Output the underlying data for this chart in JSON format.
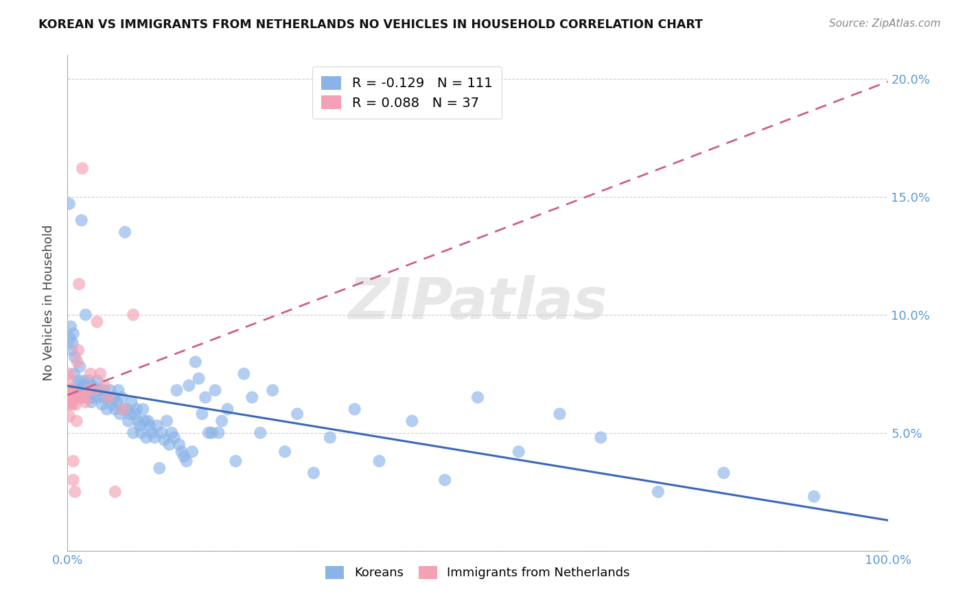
{
  "title": "KOREAN VS IMMIGRANTS FROM NETHERLANDS NO VEHICLES IN HOUSEHOLD CORRELATION CHART",
  "source": "Source: ZipAtlas.com",
  "ylabel": "No Vehicles in Household",
  "xmin": 0.0,
  "xmax": 1.0,
  "ymin": 0.0,
  "ymax": 0.21,
  "korean_color": "#8ab4e8",
  "netherlands_color": "#f4a0b5",
  "korean_line_color": "#3a68b8",
  "netherlands_line_color": "#d06080",
  "korean_R": -0.129,
  "korean_N": 111,
  "netherlands_R": 0.088,
  "netherlands_N": 37,
  "legend_label_korean": "Koreans",
  "legend_label_netherlands": "Immigrants from Netherlands",
  "watermark": "ZIPatlas",
  "korean_x": [
    0.002,
    0.003,
    0.004,
    0.005,
    0.006,
    0.007,
    0.008,
    0.009,
    0.01,
    0.011,
    0.012,
    0.013,
    0.014,
    0.015,
    0.016,
    0.017,
    0.018,
    0.019,
    0.02,
    0.021,
    0.022,
    0.023,
    0.024,
    0.025,
    0.026,
    0.027,
    0.028,
    0.029,
    0.03,
    0.032,
    0.034,
    0.036,
    0.038,
    0.04,
    0.042,
    0.044,
    0.046,
    0.048,
    0.05,
    0.052,
    0.054,
    0.056,
    0.058,
    0.06,
    0.062,
    0.064,
    0.066,
    0.068,
    0.07,
    0.072,
    0.074,
    0.076,
    0.078,
    0.08,
    0.082,
    0.084,
    0.086,
    0.088,
    0.09,
    0.092,
    0.094,
    0.096,
    0.098,
    0.1,
    0.103,
    0.106,
    0.109,
    0.112,
    0.115,
    0.118,
    0.121,
    0.124,
    0.127,
    0.13,
    0.133,
    0.136,
    0.139,
    0.142,
    0.145,
    0.148,
    0.152,
    0.156,
    0.16,
    0.164,
    0.168,
    0.172,
    0.176,
    0.18,
    0.184,
    0.188,
    0.195,
    0.205,
    0.215,
    0.225,
    0.235,
    0.25,
    0.265,
    0.28,
    0.3,
    0.32,
    0.35,
    0.38,
    0.42,
    0.46,
    0.5,
    0.55,
    0.6,
    0.65,
    0.72,
    0.8,
    0.91
  ],
  "korean_y": [
    0.147,
    0.09,
    0.095,
    0.085,
    0.088,
    0.092,
    0.075,
    0.082,
    0.068,
    0.07,
    0.068,
    0.065,
    0.072,
    0.078,
    0.068,
    0.14,
    0.065,
    0.07,
    0.072,
    0.068,
    0.1,
    0.065,
    0.068,
    0.068,
    0.072,
    0.068,
    0.065,
    0.063,
    0.07,
    0.065,
    0.068,
    0.072,
    0.068,
    0.065,
    0.062,
    0.068,
    0.065,
    0.06,
    0.065,
    0.068,
    0.062,
    0.065,
    0.06,
    0.063,
    0.068,
    0.058,
    0.065,
    0.06,
    0.135,
    0.06,
    0.055,
    0.058,
    0.063,
    0.05,
    0.058,
    0.06,
    0.055,
    0.053,
    0.05,
    0.06,
    0.055,
    0.048,
    0.055,
    0.053,
    0.05,
    0.048,
    0.053,
    0.035,
    0.05,
    0.047,
    0.055,
    0.045,
    0.05,
    0.048,
    0.068,
    0.045,
    0.042,
    0.04,
    0.038,
    0.07,
    0.042,
    0.08,
    0.073,
    0.058,
    0.065,
    0.05,
    0.05,
    0.068,
    0.05,
    0.055,
    0.06,
    0.038,
    0.075,
    0.065,
    0.05,
    0.068,
    0.042,
    0.058,
    0.033,
    0.048,
    0.06,
    0.038,
    0.055,
    0.03,
    0.065,
    0.042,
    0.058,
    0.048,
    0.025,
    0.033,
    0.023
  ],
  "netherlands_x": [
    0.001,
    0.001,
    0.002,
    0.002,
    0.002,
    0.003,
    0.003,
    0.004,
    0.004,
    0.005,
    0.005,
    0.006,
    0.007,
    0.007,
    0.008,
    0.008,
    0.009,
    0.01,
    0.011,
    0.012,
    0.013,
    0.014,
    0.015,
    0.016,
    0.018,
    0.02,
    0.022,
    0.025,
    0.028,
    0.032,
    0.036,
    0.04,
    0.045,
    0.05,
    0.058,
    0.068,
    0.08
  ],
  "netherlands_y": [
    0.073,
    0.065,
    0.075,
    0.063,
    0.057,
    0.068,
    0.062,
    0.068,
    0.065,
    0.068,
    0.063,
    0.062,
    0.038,
    0.03,
    0.068,
    0.065,
    0.025,
    0.062,
    0.055,
    0.08,
    0.085,
    0.113,
    0.065,
    0.065,
    0.162,
    0.065,
    0.063,
    0.068,
    0.075,
    0.068,
    0.097,
    0.075,
    0.07,
    0.065,
    0.025,
    0.06,
    0.1
  ]
}
